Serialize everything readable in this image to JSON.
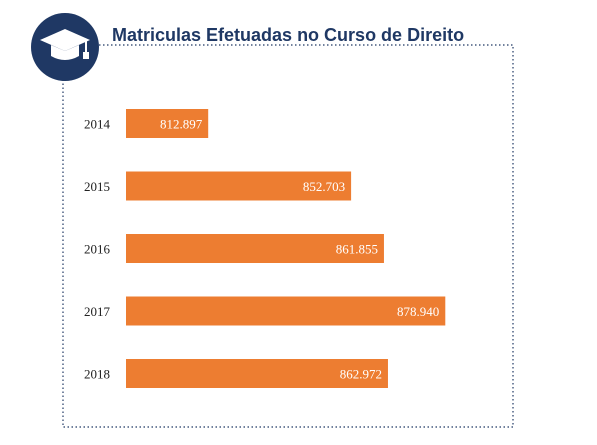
{
  "chart_data": {
    "type": "bar",
    "orientation": "horizontal",
    "title": "Matriculas Efetuadas  no Curso de Direito",
    "categories": [
      "2014",
      "2015",
      "2016",
      "2017",
      "2018"
    ],
    "values": [
      812897,
      852703,
      861855,
      878940,
      862972
    ],
    "value_labels": [
      "812.897",
      "852.703",
      "861.855",
      "878.940",
      "862.972"
    ],
    "xlim": [
      790000,
      890000
    ],
    "grid": false,
    "legend": "none",
    "colors": {
      "bar": "#ed7d31",
      "title": "#1f3864",
      "badge": "#1f3864",
      "frame": "#1f3864",
      "value_label": "#ffffff",
      "category_label": "#222222"
    },
    "icon": "graduation-cap-icon"
  }
}
